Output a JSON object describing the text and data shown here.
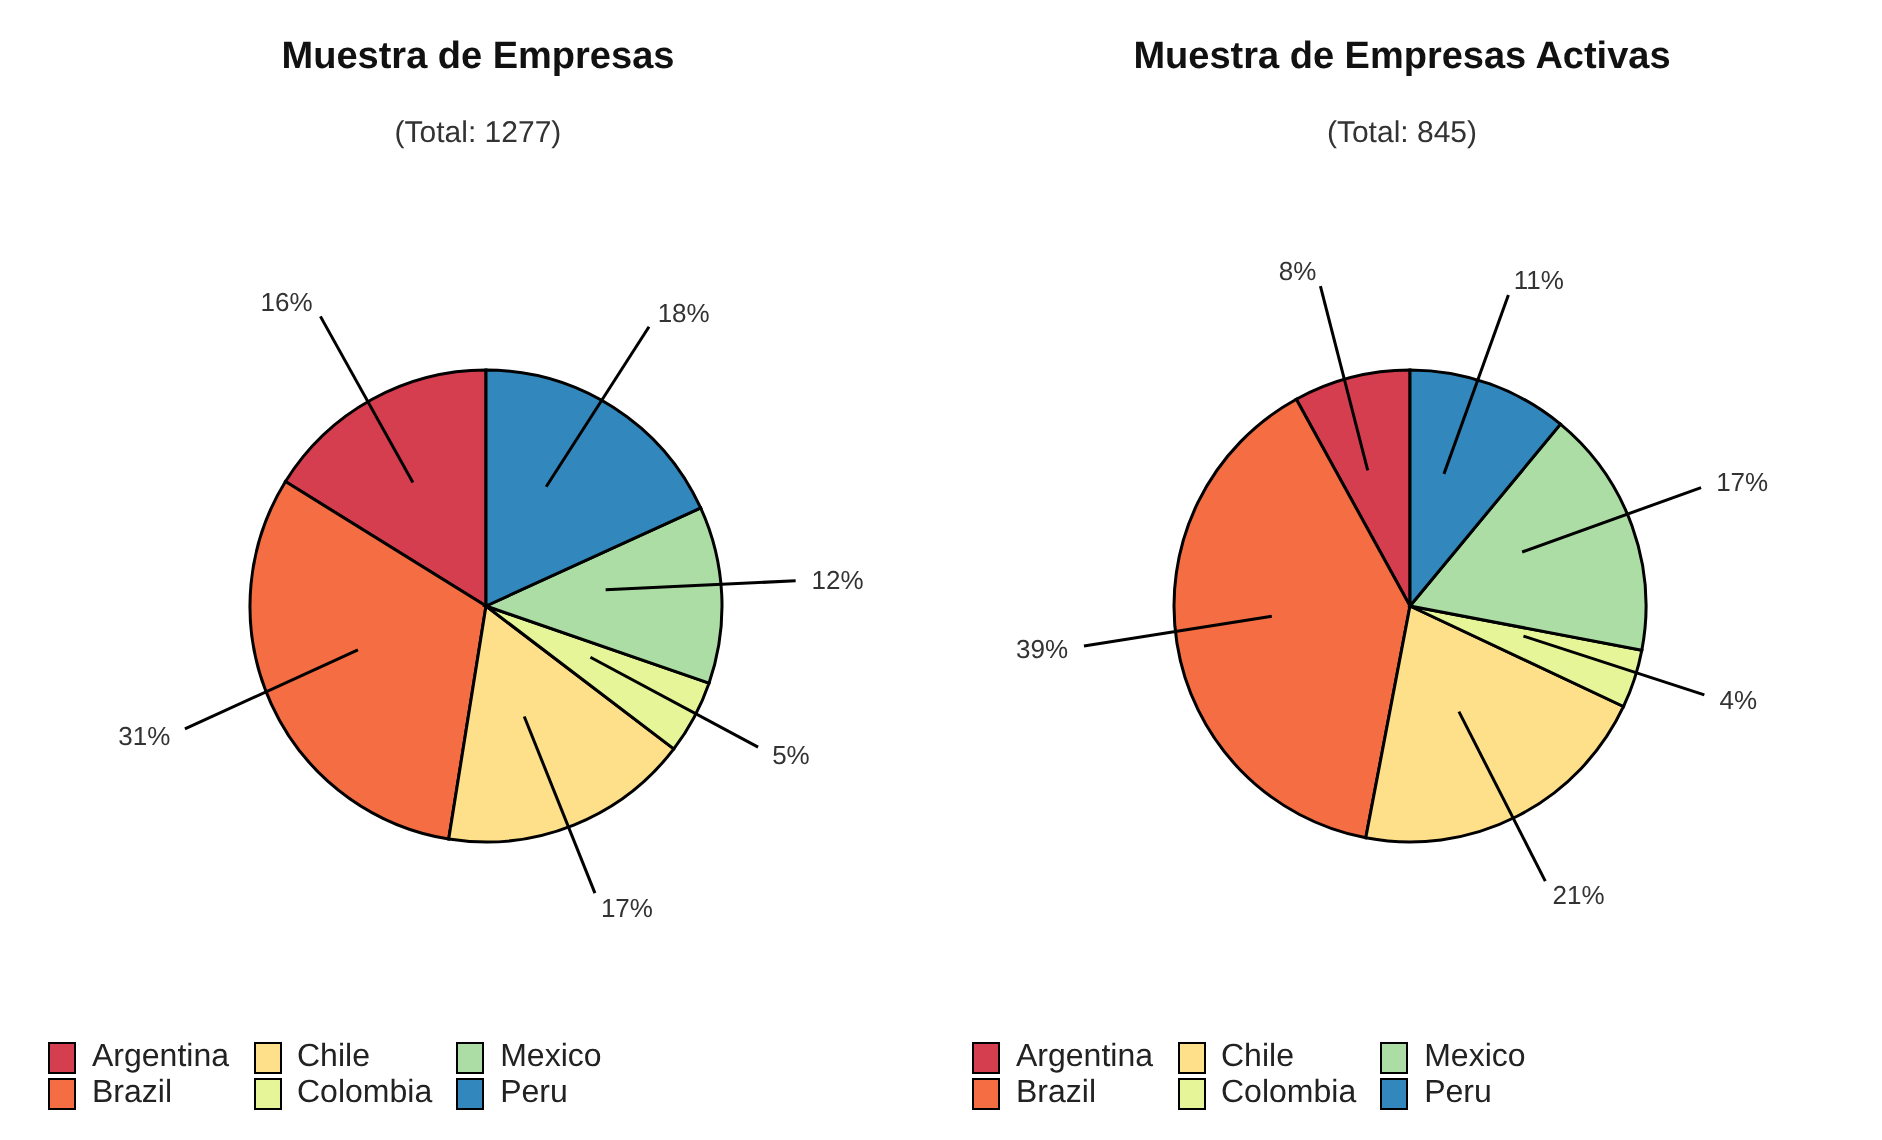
{
  "chart_data": [
    {
      "type": "pie",
      "title": "Muestra de Empresas",
      "subtitle": "(Total: 1277)",
      "categories": [
        "Argentina",
        "Brazil",
        "Chile",
        "Colombia",
        "Mexico",
        "Peru"
      ],
      "values": [
        16,
        31,
        17,
        5,
        12,
        18
      ],
      "colors": [
        "#d53e4f",
        "#f46d43",
        "#fee08b",
        "#e6f598",
        "#abdda4",
        "#3288bd"
      ],
      "value_labels": [
        "16%",
        "31%",
        "17%",
        "5%",
        "12%",
        "18%"
      ],
      "legend": "bottom"
    },
    {
      "type": "pie",
      "title": "Muestra de Empresas Activas",
      "subtitle": "(Total: 845)",
      "categories": [
        "Argentina",
        "Brazil",
        "Chile",
        "Colombia",
        "Mexico",
        "Peru"
      ],
      "values": [
        8,
        39,
        21,
        4,
        17,
        11
      ],
      "colors": [
        "#d53e4f",
        "#f46d43",
        "#fee08b",
        "#e6f598",
        "#abdda4",
        "#3288bd"
      ],
      "value_labels": [
        "8%",
        "39%",
        "21%",
        "4%",
        "17%",
        "11%"
      ],
      "legend": "bottom"
    }
  ]
}
